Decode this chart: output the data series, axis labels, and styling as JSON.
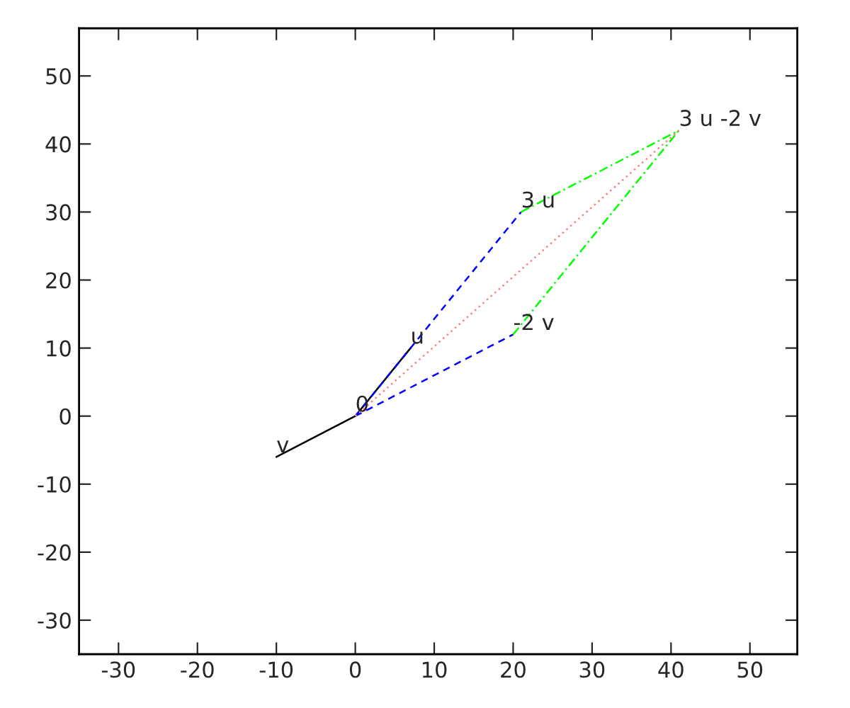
{
  "chart_data": {
    "type": "line",
    "series": [
      {
        "color": "#000000",
        "line_style": "solid",
        "x": [
          0,
          7,
          null,
          0,
          -10
        ],
        "values": [
          0,
          10,
          null,
          0,
          -6
        ]
      },
      {
        "color": "#0000ff",
        "line_style": "dashed",
        "x": [
          0,
          21,
          null,
          0,
          20
        ],
        "values": [
          0,
          30,
          null,
          0,
          12
        ]
      },
      {
        "color": "#00ff00",
        "line_style": "dashdot",
        "x": [
          21,
          41,
          null,
          20,
          41
        ],
        "values": [
          30,
          42,
          null,
          12,
          42
        ]
      },
      {
        "color": "#ff8080",
        "line_style": "dotted",
        "x": [
          0,
          41
        ],
        "values": [
          0,
          42
        ]
      }
    ],
    "annotations": [
      {
        "text": "u",
        "x": 7,
        "y": 10
      },
      {
        "text": "v",
        "x": -10,
        "y": -6
      },
      {
        "text": "0",
        "x": 0,
        "y": 0
      },
      {
        "text": "3 u",
        "x": 21,
        "y": 30
      },
      {
        "text": "-2 v",
        "x": 20,
        "y": 12
      },
      {
        "text": "3 u -2 v",
        "x": 41,
        "y": 42
      }
    ],
    "xlim": [
      -35,
      56
    ],
    "ylim": [
      -35,
      57
    ],
    "xticks": [
      -30,
      -20,
      -10,
      0,
      10,
      20,
      30,
      40,
      50
    ],
    "yticks": [
      -30,
      -20,
      -10,
      0,
      10,
      20,
      30,
      40,
      50
    ],
    "grid": false,
    "legend": false,
    "marker": "none"
  }
}
